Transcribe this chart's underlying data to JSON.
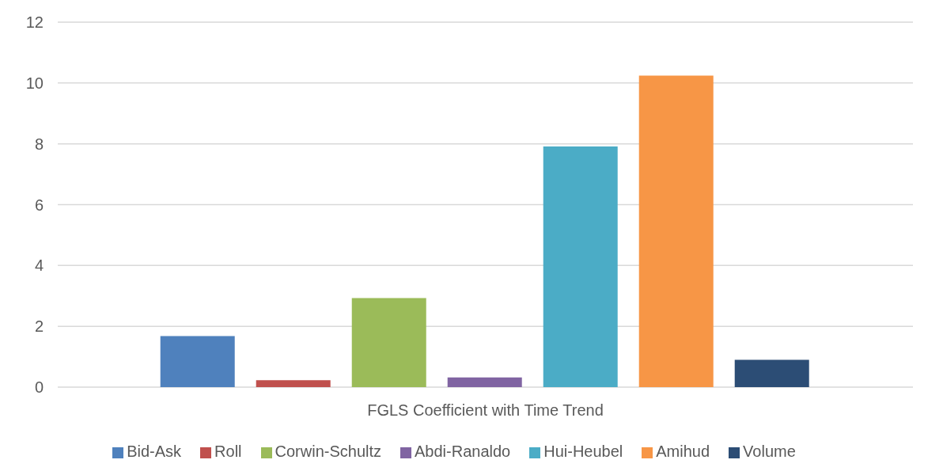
{
  "chart_data": {
    "type": "bar",
    "categories": [
      "FGLS Coefficient with Time Trend"
    ],
    "series": [
      {
        "name": "Bid-Ask",
        "color": "#4f81bd",
        "values": [
          1.68
        ]
      },
      {
        "name": "Roll",
        "color": "#c0504d",
        "values": [
          0.23
        ]
      },
      {
        "name": "Corwin-Schultz",
        "color": "#9bbb59",
        "values": [
          2.93
        ]
      },
      {
        "name": "Abdi-Ranaldo",
        "color": "#8064a2",
        "values": [
          0.32
        ]
      },
      {
        "name": "Hui-Heubel",
        "color": "#4bacc6",
        "values": [
          7.91
        ]
      },
      {
        "name": "Amihud",
        "color": "#f79646",
        "values": [
          10.24
        ]
      },
      {
        "name": "Volume",
        "color": "#2c4d75",
        "values": [
          0.9
        ]
      }
    ],
    "ylim": [
      0,
      12
    ],
    "yticks": [
      0,
      2,
      4,
      6,
      8,
      10,
      12
    ],
    "grid": "y",
    "legend": "bottom"
  }
}
